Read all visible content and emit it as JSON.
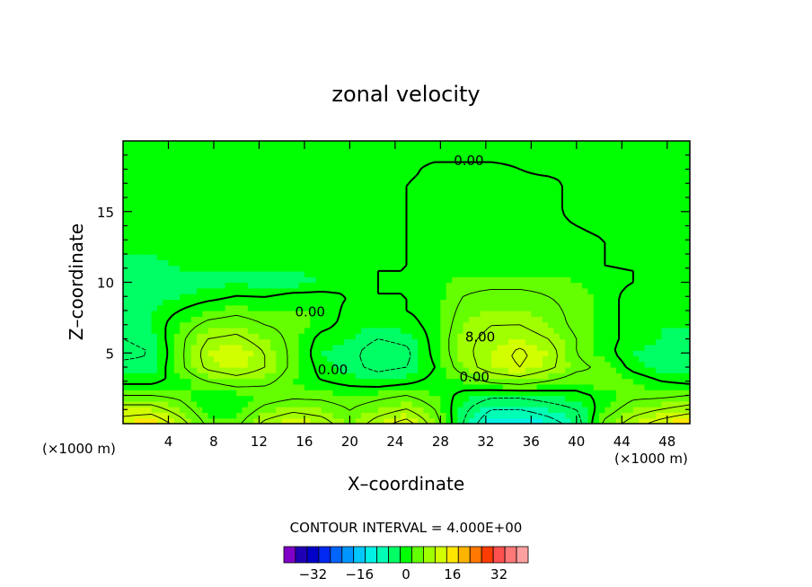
{
  "chart_data": {
    "type": "heatmap",
    "title": "zonal velocity",
    "xlabel": "X–coordinate",
    "ylabel": "Z–coordinate",
    "x_unit": "(×1000 m)",
    "x_unit_right": "(×1000 m)",
    "xlim": [
      0,
      50
    ],
    "ylim": [
      0,
      20
    ],
    "x_ticks": [
      4,
      8,
      12,
      16,
      20,
      24,
      28,
      32,
      36,
      40,
      44,
      48
    ],
    "y_ticks": [
      5,
      10,
      15
    ],
    "contour_interval_text": "CONTOUR INTERVAL = 4.000E+00",
    "contour_labels": [
      {
        "text": "0.00",
        "x": 30.5,
        "y": 18.3
      },
      {
        "text": "0.00",
        "x": 16.5,
        "y": 7.6
      },
      {
        "text": "0.00",
        "x": 18.5,
        "y": 3.5
      },
      {
        "text": "0.00",
        "x": 31.0,
        "y": 3.0
      },
      {
        "text": "8.00",
        "x": 31.5,
        "y": 5.8
      }
    ],
    "colorbar": {
      "ticks": [
        -32,
        -16,
        0,
        16,
        32
      ],
      "tick_labels": [
        "−32",
        "−16",
        "0",
        "16",
        "32"
      ],
      "levels": [
        -38,
        -34,
        -30,
        -26,
        -22,
        -18,
        -14,
        -10,
        -6,
        -2,
        2,
        6,
        10,
        14,
        18,
        22,
        26,
        30,
        34,
        38
      ],
      "colors": [
        "#8000c8",
        "#2000b4",
        "#0000c8",
        "#0028f0",
        "#0064ff",
        "#0096ff",
        "#00c8ff",
        "#00f0e6",
        "#00ffb4",
        "#00ff64",
        "#00ff00",
        "#64ff00",
        "#a0ff00",
        "#d2ff00",
        "#ffe600",
        "#ffb400",
        "#ff7800",
        "#ff3c00",
        "#ff5050",
        "#ff7878",
        "#ffa0a0"
      ]
    },
    "field_grid": {
      "x": [
        0,
        2.5,
        5,
        7.5,
        10,
        12.5,
        15,
        17.5,
        20,
        22.5,
        25,
        27.5,
        30,
        32.5,
        35,
        37.5,
        40,
        42.5,
        45,
        47.5,
        50
      ],
      "z": [
        0,
        1,
        2,
        3,
        4,
        5,
        6,
        7,
        8,
        9,
        10,
        11,
        12,
        13,
        14,
        15,
        16,
        17,
        18,
        19,
        20
      ],
      "values": [
        [
          14,
          16,
          10,
          3,
          3,
          9,
          12,
          10,
          5,
          10,
          14,
          6,
          -4,
          -12,
          -13,
          -10,
          -6,
          5,
          10,
          14,
          17
        ],
        [
          10,
          10,
          6,
          1,
          1,
          5,
          7,
          6,
          4,
          6,
          8,
          4,
          -3,
          -8,
          -8,
          -6,
          -4,
          2,
          6,
          8,
          10
        ],
        [
          4,
          4,
          3,
          0,
          1,
          2,
          3,
          3,
          2,
          3,
          4,
          2,
          -1,
          -3,
          -3,
          -2,
          -1,
          1,
          3,
          3,
          4
        ],
        [
          -1,
          -1,
          1,
          4,
          6,
          5,
          2,
          0,
          -1,
          -2,
          -1,
          1,
          2,
          5,
          6,
          4,
          2,
          4,
          2,
          0,
          -1
        ],
        [
          -3,
          -3,
          3,
          9,
          11,
          8,
          3,
          -1,
          -3,
          -5,
          -4,
          0,
          6,
          10,
          12,
          9,
          5,
          3,
          -1,
          -3,
          -3
        ],
        [
          -5,
          -4,
          3,
          10,
          12,
          8,
          3,
          -2,
          -3,
          -6,
          -5,
          1,
          7,
          10,
          13,
          10,
          4,
          1,
          -2,
          -3,
          -4
        ],
        [
          -4,
          -3,
          3,
          8,
          9,
          6,
          3,
          -1,
          -2,
          -4,
          -3,
          1,
          7,
          9,
          10,
          8,
          4,
          1,
          -1,
          -2,
          -3
        ],
        [
          -3,
          -2,
          2,
          5,
          6,
          4,
          3,
          1,
          -1,
          -2,
          -1,
          1,
          6,
          8,
          8,
          6,
          3,
          1,
          -1,
          -2,
          -2
        ],
        [
          -3,
          -2,
          0,
          2,
          3,
          2,
          2,
          2,
          -1,
          -1,
          0,
          1,
          5,
          6,
          6,
          5,
          3,
          1,
          -1,
          -2,
          -2
        ],
        [
          -3,
          -3,
          -2,
          -1,
          0,
          0,
          1,
          1,
          0,
          0,
          0,
          1,
          4,
          5,
          5,
          4,
          3,
          1,
          -1,
          -1,
          -2
        ],
        [
          -4,
          -4,
          -3,
          -3,
          -2,
          -3,
          -3,
          -2,
          -1,
          0,
          0,
          1,
          3,
          3,
          3,
          3,
          2,
          1,
          0,
          -1,
          -2
        ],
        [
          -3,
          -3,
          -2,
          -2,
          -2,
          -2,
          -2,
          -1,
          -1,
          0,
          0,
          0,
          1,
          1,
          1,
          1,
          1,
          0,
          0,
          -1,
          -1
        ],
        [
          -2,
          -2,
          -1,
          -1,
          -1,
          -1,
          -1,
          -1,
          -1,
          -1,
          0,
          0,
          1,
          1,
          1,
          1,
          1,
          0,
          -1,
          -1,
          -1
        ],
        [
          -1,
          -1,
          -1,
          -1,
          -1,
          -1,
          -1,
          -1,
          -1,
          -1,
          0,
          0,
          1,
          1,
          1,
          1,
          1,
          0,
          -1,
          -1,
          -1
        ],
        [
          -1,
          -1,
          -1,
          -1,
          -1,
          -1,
          -1,
          -1,
          -1,
          -1,
          0,
          1,
          1,
          1,
          1,
          1,
          0,
          -1,
          -1,
          -1,
          -1
        ],
        [
          -1,
          -1,
          -1,
          -1,
          -1,
          -1,
          -1,
          -1,
          -1,
          -1,
          0,
          1,
          1,
          1,
          1,
          1,
          -1,
          -1,
          -1,
          -1,
          -1
        ],
        [
          -1,
          -1,
          -1,
          -1,
          -1,
          -1,
          -1,
          -1,
          -1,
          -1,
          0,
          1,
          1,
          1,
          1,
          1,
          -1,
          -1,
          -1,
          -1,
          -1
        ],
        [
          -1,
          -1,
          -1,
          -1,
          -1,
          -1,
          -1,
          -1,
          -1,
          -1,
          0,
          1,
          1,
          1,
          1,
          1,
          -1,
          -1,
          -1,
          -1,
          -1
        ],
        [
          -1,
          -1,
          -1,
          -1,
          -1,
          -1,
          -1,
          -1,
          -1,
          -1,
          -1,
          1,
          1,
          1,
          0,
          -1,
          -1,
          -1,
          -1,
          -1,
          -1
        ],
        [
          -1,
          -1,
          -1,
          -1,
          -1,
          -1,
          -1,
          -1,
          -1,
          -1,
          -1,
          -1,
          -1,
          -1,
          -1,
          -1,
          -1,
          -1,
          -1,
          -1,
          -1
        ],
        [
          -1,
          -1,
          -1,
          -1,
          -1,
          -1,
          -1,
          -1,
          -1,
          -1,
          -1,
          -1,
          -1,
          -1,
          -1,
          -1,
          -1,
          -1,
          -1,
          -1,
          -1
        ]
      ]
    }
  }
}
